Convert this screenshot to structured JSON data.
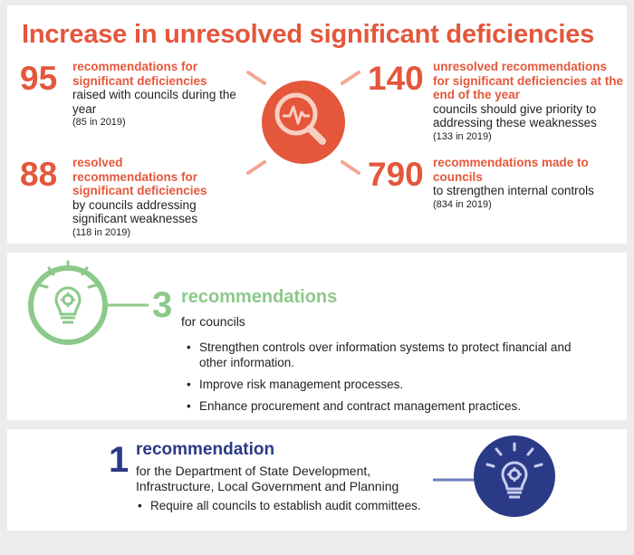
{
  "title": "Increase in unresolved significant deficiencies",
  "stats": [
    {
      "number": "95",
      "highlight": "recommendations for significant deficiencies",
      "text": "raised with councils during the year",
      "note": "(85 in 2019)"
    },
    {
      "number": "88",
      "highlight": "resolved recommendations for significant deficiencies",
      "text": "by councils addressing significant weaknesses",
      "note": "(118 in 2019)"
    },
    {
      "number": "140",
      "highlight": "unresolved recommendations for significant deficiencies at the end of the year",
      "text": "councils should give priority to addressing these weaknesses",
      "note": "(133 in 2019)"
    },
    {
      "number": "790",
      "highlight": "recommendations made to councils",
      "text": "to strengthen internal controls",
      "note": "(834 in 2019)"
    }
  ],
  "councils": {
    "number": "3",
    "heading": "recommendations",
    "subheading": "for councils",
    "bullets": [
      "Strengthen controls over information systems to protect financial and other information.",
      "Improve risk management processes.",
      "Enhance procurement and contract management practices."
    ]
  },
  "department": {
    "number": "1",
    "heading": "recommendation",
    "subheading": "for the Department of State Development, Infrastructure, Local Government and Planning",
    "bullets": [
      "Require all councils to establish audit committees."
    ]
  },
  "icons": {
    "top": "magnifier-pulse-icon",
    "councils": "lightbulb-gear-icon",
    "department": "lightbulb-gear-icon"
  },
  "colors": {
    "accent": "#e4573b",
    "green": "#8cc98a",
    "navy": "#2b3a86",
    "background": "#ececec"
  }
}
